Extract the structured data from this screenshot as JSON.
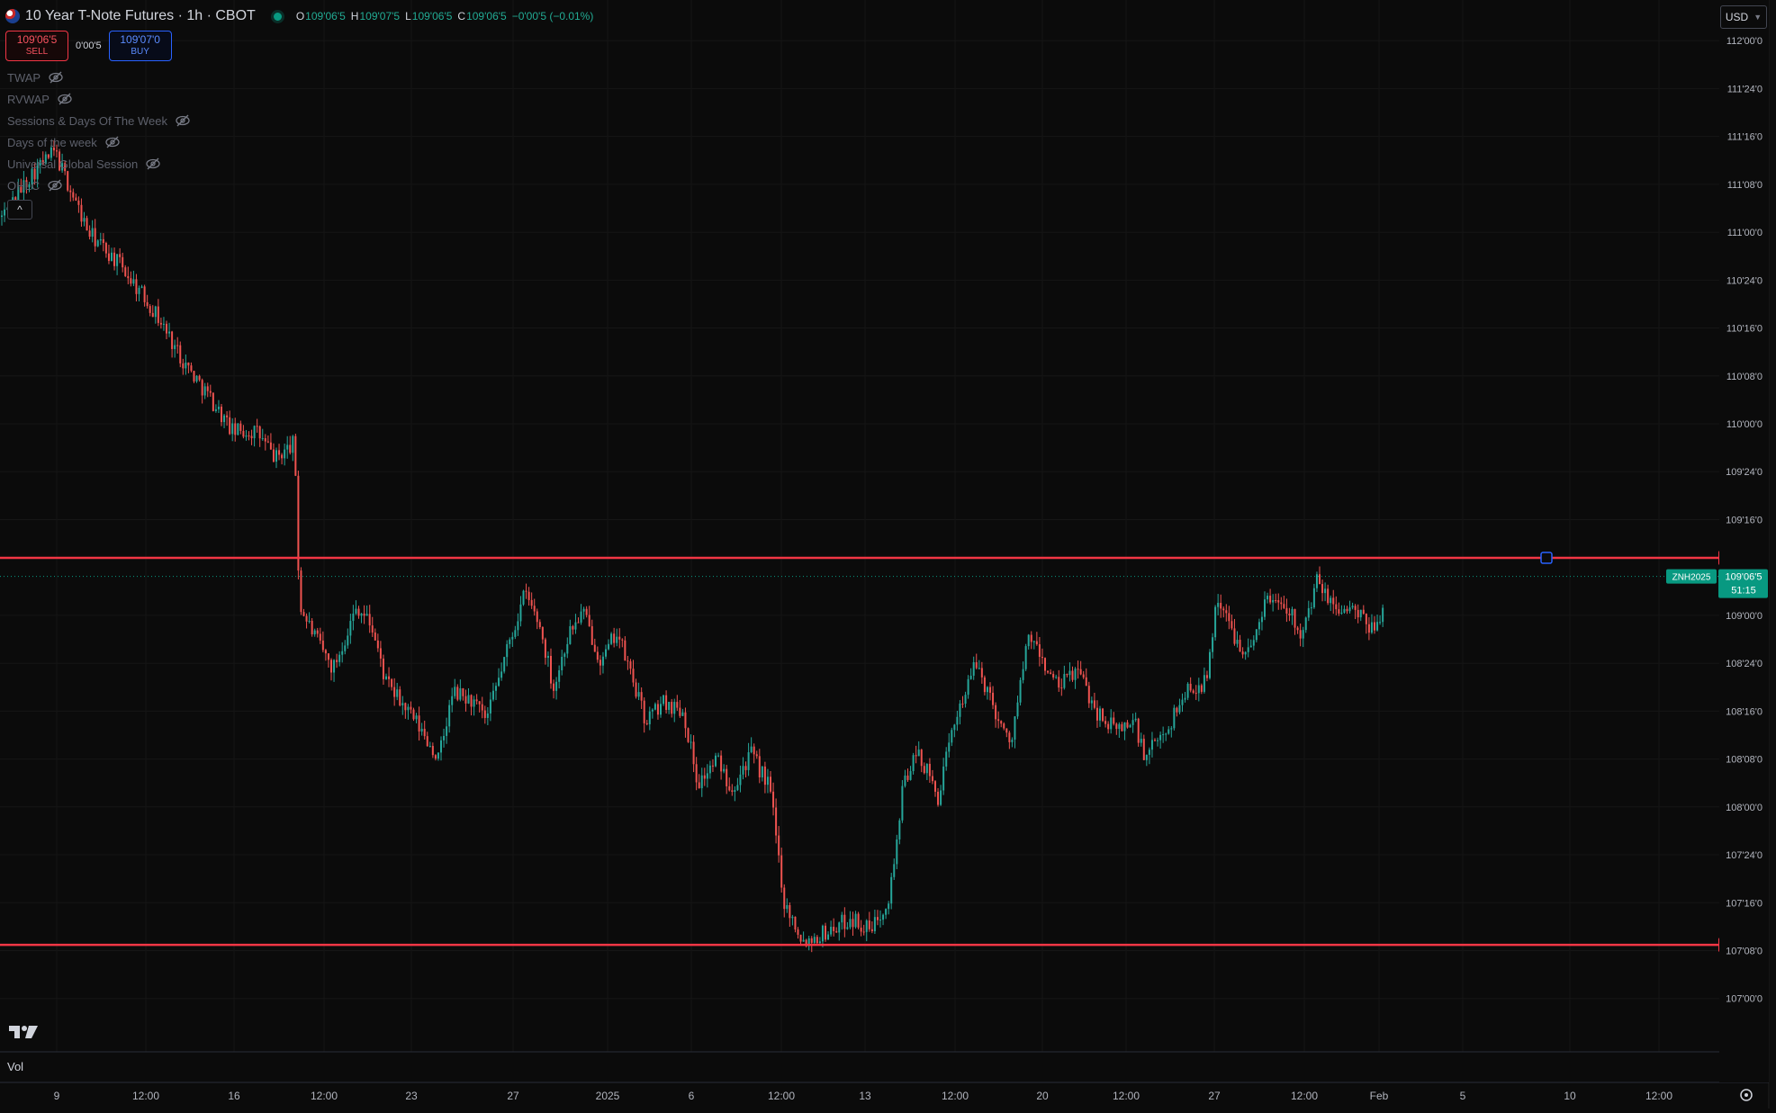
{
  "header": {
    "title": "10 Year T-Note Futures · 1h · CBOT",
    "ohlc": {
      "o": "109'06'5",
      "h": "109'07'5",
      "l": "109'06'5",
      "c": "109'06'5",
      "change": "−0'00'5 (−0.01%)"
    }
  },
  "trade": {
    "sell_price": "109'06'5",
    "sell_label": "SELL",
    "spread": "0'00'5",
    "buy_price": "109'07'0",
    "buy_label": "BUY"
  },
  "indicators": [
    "TWAP",
    "RVWAP",
    "Sessions & Days Of The Week",
    "Days of the week",
    "Universal Global Session",
    "OHLC"
  ],
  "currency": "USD",
  "volume_label": "Vol",
  "colors": {
    "up": "#26a69a",
    "down": "#ef5350",
    "hline": "#f23645",
    "background": "#0b0b0b",
    "last_price": "#089981"
  },
  "chart_data": {
    "type": "candlestick",
    "title": "10 Year T-Note Futures · 1h · CBOT",
    "symbol": "ZNH2025",
    "y_unit": "points (32nds)",
    "ylim": [
      106.8,
      112.1
    ],
    "y_tick_labels": [
      "112'00'0",
      "111'24'0",
      "111'16'0",
      "111'08'0",
      "111'00'0",
      "110'24'0",
      "110'16'0",
      "110'08'0",
      "110'00'0",
      "109'24'0",
      "109'16'0",
      "109'00'0",
      "108'24'0",
      "108'16'0",
      "108'08'0",
      "108'00'0",
      "107'24'0",
      "107'16'0",
      "107'08'0",
      "107'00'0"
    ],
    "y_tick_values": [
      112.0,
      111.75,
      111.5,
      111.25,
      111.0,
      110.75,
      110.5,
      110.25,
      110.0,
      109.75,
      109.5,
      109.0,
      108.75,
      108.5,
      108.25,
      108.0,
      107.75,
      107.5,
      107.25,
      107.0
    ],
    "x_tick_labels": [
      "9",
      "12:00",
      "16",
      "12:00",
      "23",
      "27",
      "2025",
      "6",
      "12:00",
      "13",
      "12:00",
      "20",
      "12:00",
      "27",
      "12:00",
      "Feb",
      "5",
      "10",
      "12:00"
    ],
    "grid": true,
    "path_points": [
      [
        0,
        111.08
      ],
      [
        0.03,
        111.3
      ],
      [
        0.055,
        111.42
      ],
      [
        0.09,
        111.0
      ],
      [
        0.125,
        110.82
      ],
      [
        0.16,
        110.58
      ],
      [
        0.19,
        110.32
      ],
      [
        0.215,
        110.15
      ],
      [
        0.24,
        109.96
      ],
      [
        0.265,
        109.96
      ],
      [
        0.285,
        109.82
      ],
      [
        0.305,
        109.9
      ],
      [
        0.31,
        109.05
      ],
      [
        0.33,
        108.85
      ],
      [
        0.345,
        108.72
      ],
      [
        0.37,
        109.05
      ],
      [
        0.385,
        108.95
      ],
      [
        0.4,
        108.65
      ],
      [
        0.43,
        108.45
      ],
      [
        0.455,
        108.25
      ],
      [
        0.47,
        108.6
      ],
      [
        0.49,
        108.55
      ],
      [
        0.505,
        108.45
      ],
      [
        0.525,
        108.8
      ],
      [
        0.545,
        109.12
      ],
      [
        0.56,
        108.95
      ],
      [
        0.575,
        108.62
      ],
      [
        0.59,
        108.9
      ],
      [
        0.605,
        109.02
      ],
      [
        0.625,
        108.75
      ],
      [
        0.64,
        108.92
      ],
      [
        0.66,
        108.62
      ],
      [
        0.67,
        108.45
      ],
      [
        0.69,
        108.55
      ],
      [
        0.71,
        108.5
      ],
      [
        0.725,
        108.12
      ],
      [
        0.745,
        108.25
      ],
      [
        0.76,
        108.1
      ],
      [
        0.78,
        108.28
      ],
      [
        0.8,
        108.1
      ],
      [
        0.815,
        107.5
      ],
      [
        0.835,
        107.3
      ],
      [
        0.86,
        107.35
      ],
      [
        0.885,
        107.42
      ],
      [
        0.905,
        107.35
      ],
      [
        0.925,
        107.55
      ],
      [
        0.94,
        108.15
      ],
      [
        0.955,
        108.28
      ],
      [
        0.975,
        108.05
      ],
      [
        0.995,
        108.5
      ],
      [
        1.015,
        108.75
      ],
      [
        1.035,
        108.5
      ],
      [
        1.05,
        108.32
      ],
      [
        1.07,
        108.9
      ],
      [
        1.085,
        108.75
      ],
      [
        1.1,
        108.62
      ],
      [
        1.12,
        108.72
      ],
      [
        1.14,
        108.5
      ],
      [
        1.16,
        108.4
      ],
      [
        1.18,
        108.45
      ],
      [
        1.19,
        108.25
      ],
      [
        1.215,
        108.42
      ],
      [
        1.235,
        108.62
      ],
      [
        1.255,
        108.65
      ],
      [
        1.265,
        109.1
      ],
      [
        1.285,
        108.88
      ],
      [
        1.3,
        108.8
      ],
      [
        1.315,
        109.08
      ],
      [
        1.335,
        109.08
      ],
      [
        1.355,
        108.9
      ],
      [
        1.37,
        109.18
      ],
      [
        1.385,
        109.05
      ],
      [
        1.41,
        109.02
      ],
      [
        1.425,
        108.92
      ],
      [
        1.44,
        109.05
      ]
    ],
    "h_lines": [
      {
        "label": "109'09'5",
        "value": 109.3
      },
      {
        "label": "107'09'0",
        "value": 107.28
      }
    ],
    "last_price": {
      "symbol": "ZNH2025",
      "label": "109'06'5",
      "countdown": "51:15",
      "value": 109.203
    }
  }
}
